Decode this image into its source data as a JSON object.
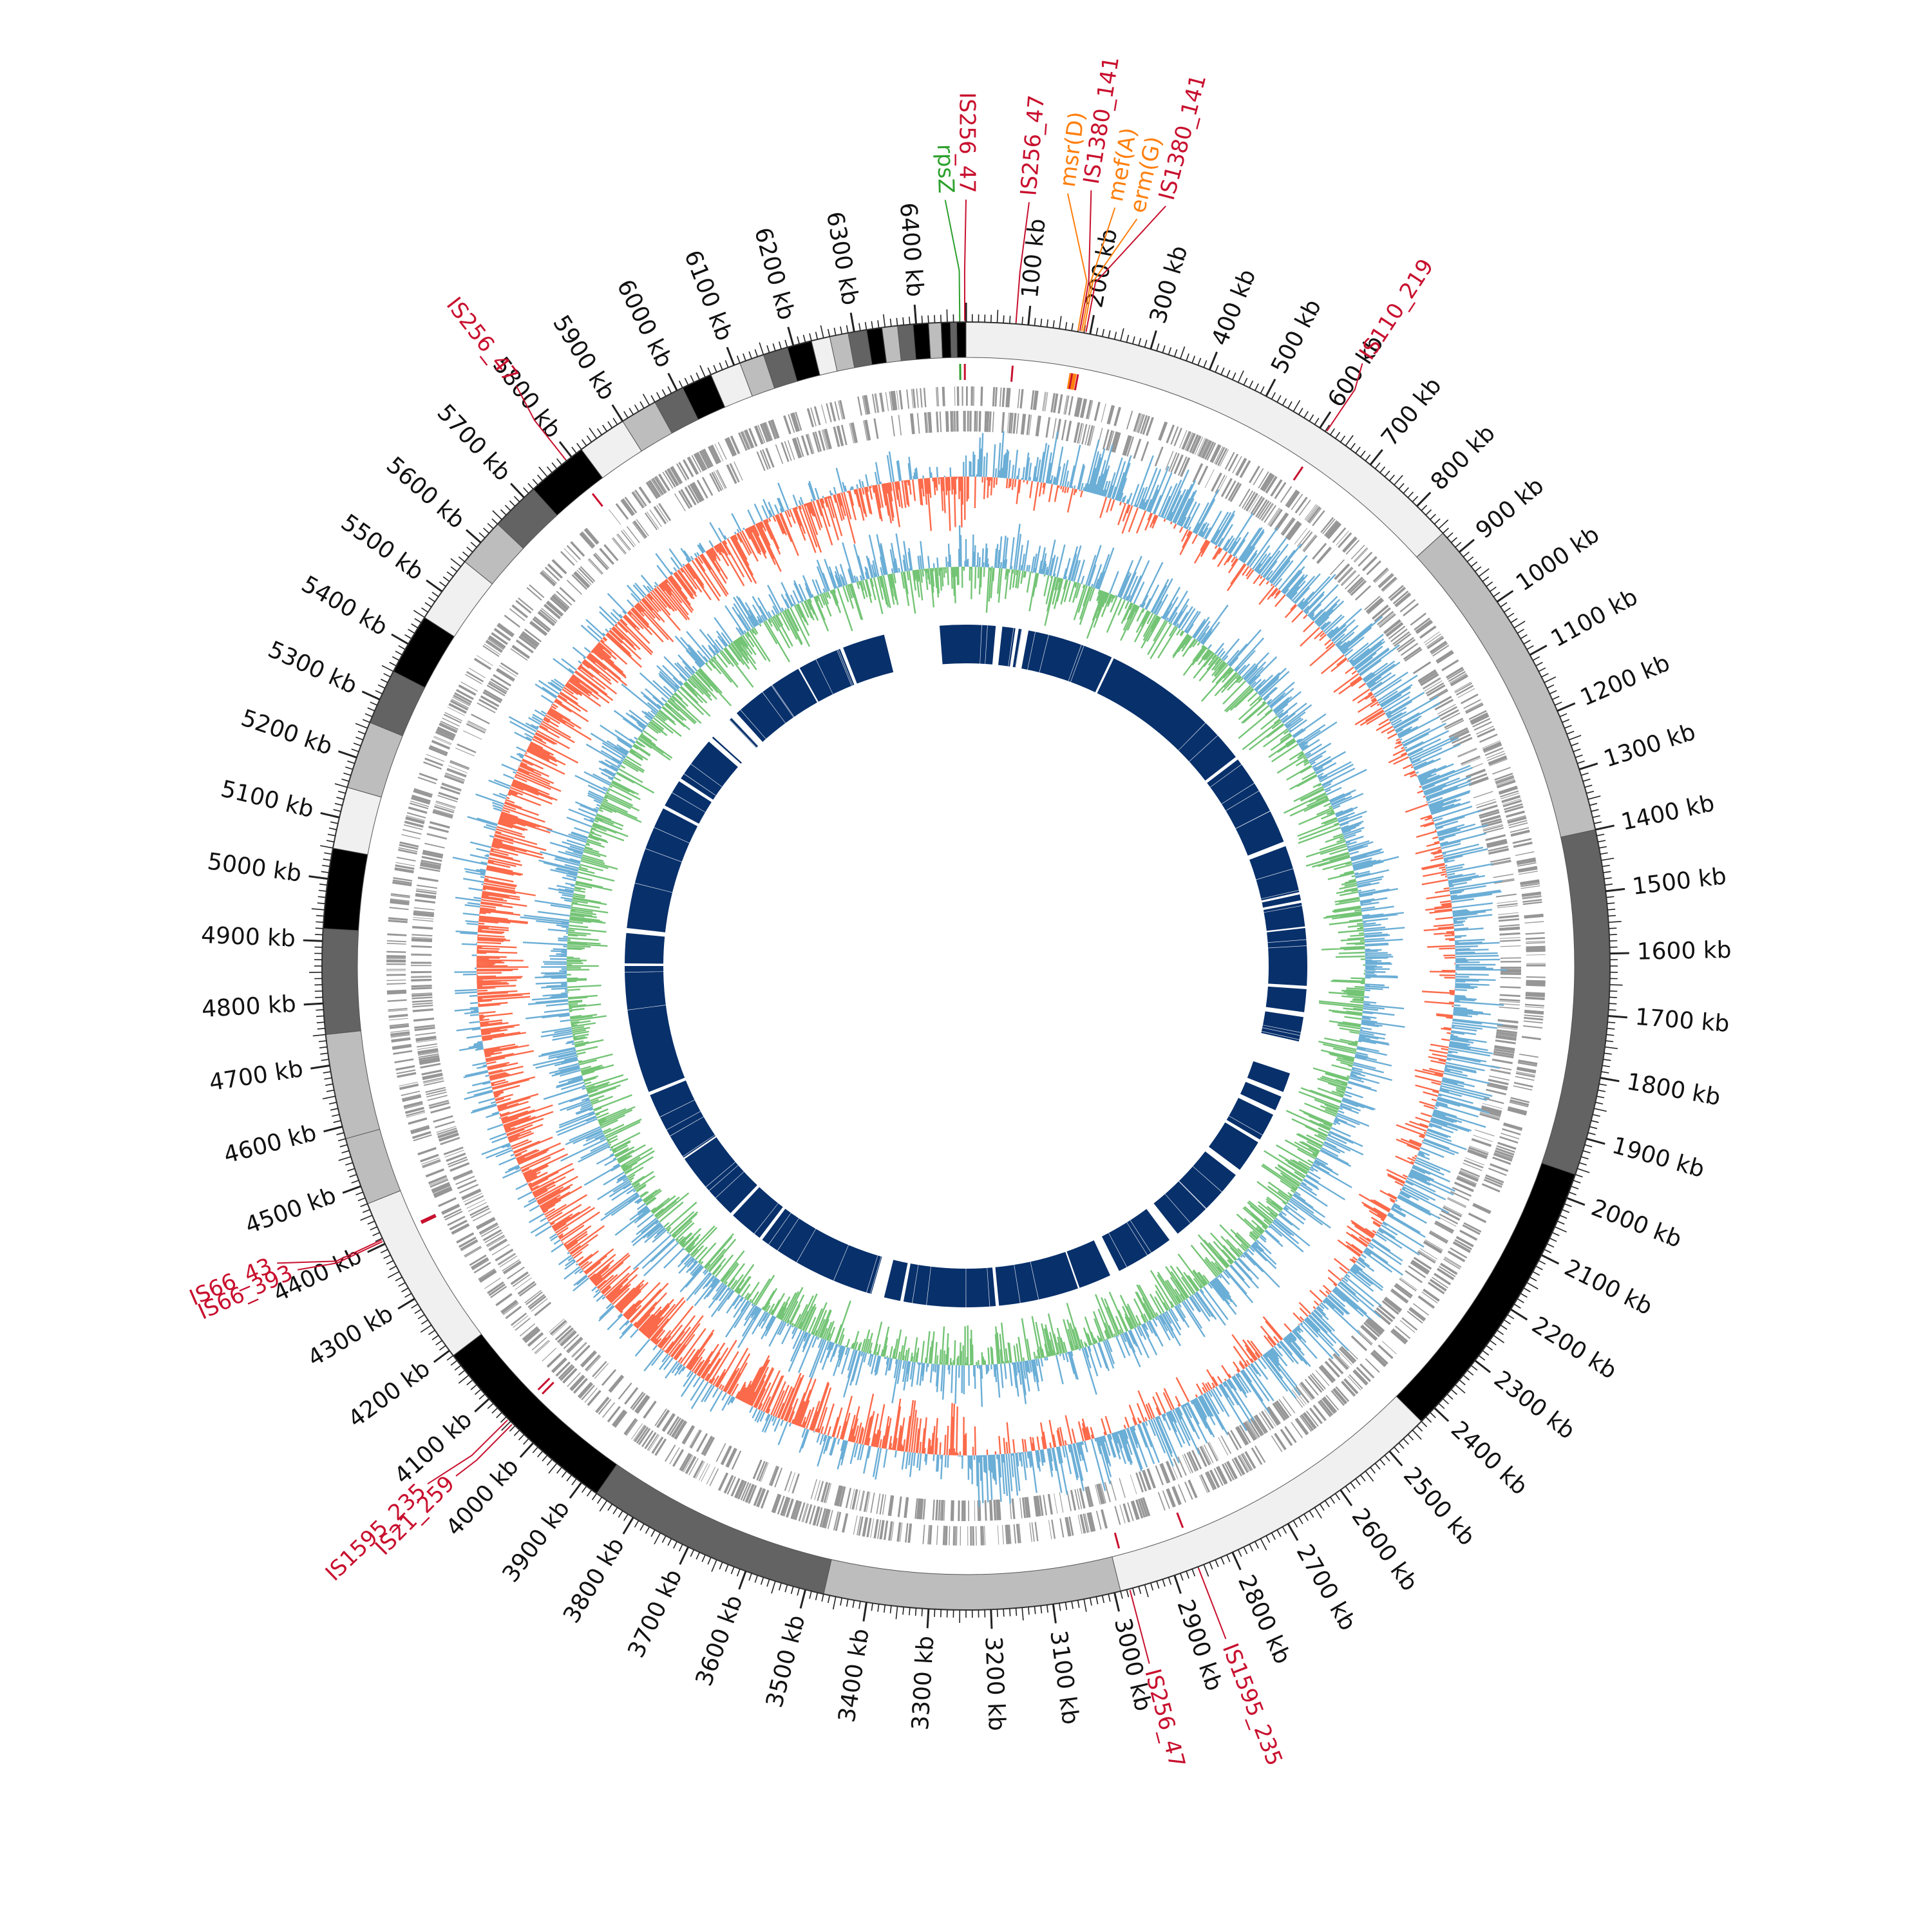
{
  "genome": {
    "length_kb": 6480,
    "tick_labels": [
      "100 kb",
      "200 kb",
      "300 kb",
      "400 kb",
      "500 kb",
      "600 kb",
      "700 kb",
      "800 kb",
      "900 kb",
      "1000 kb",
      "1100 kb",
      "1200 kb",
      "1300 kb",
      "1400 kb",
      "1500 kb",
      "1600 kb",
      "1700 kb",
      "1800 kb",
      "1900 kb",
      "2000 kb",
      "2100 kb",
      "2200 kb",
      "2300 kb",
      "2400 kb",
      "2500 kb",
      "2600 kb",
      "2700 kb",
      "2800 kb",
      "2900 kb",
      "3000 kb",
      "3100 kb",
      "3200 kb",
      "3300 kb",
      "3400 kb",
      "3500 kb",
      "3600 kb",
      "3700 kb",
      "3800 kb",
      "3900 kb",
      "4000 kb",
      "4100 kb",
      "4200 kb",
      "4300 kb",
      "4400 kb",
      "4500 kb",
      "4600 kb",
      "4700 kb",
      "4800 kb",
      "4900 kb",
      "5000 kb",
      "5100 kb",
      "5200 kb",
      "5300 kb",
      "5400 kb",
      "5500 kb",
      "5600 kb",
      "5700 kb",
      "5800 kb",
      "5900 kb",
      "6000 kb",
      "6100 kb",
      "6200 kb",
      "6300 kb",
      "6400 kb"
    ]
  },
  "contig_blocks": [
    {
      "start": 0,
      "end": 860,
      "color": "#f0f0f0"
    },
    {
      "start": 860,
      "end": 1400,
      "color": "#bdbdbd"
    },
    {
      "start": 1400,
      "end": 1960,
      "color": "#636363"
    },
    {
      "start": 1960,
      "end": 2430,
      "color": "#000000"
    },
    {
      "start": 2430,
      "end": 2990,
      "color": "#f0f0f0"
    },
    {
      "start": 2990,
      "end": 3470,
      "color": "#bdbdbd"
    },
    {
      "start": 3470,
      "end": 3870,
      "color": "#636363"
    },
    {
      "start": 3870,
      "end": 4190,
      "color": "#000000"
    },
    {
      "start": 4190,
      "end": 4470,
      "color": "#f0f0f0"
    },
    {
      "start": 4470,
      "end": 4580,
      "color": "#bdbdbd"
    },
    {
      "start": 4580,
      "end": 4750,
      "color": "#bdbdbd"
    },
    {
      "start": 4750,
      "end": 4920,
      "color": "#636363"
    },
    {
      "start": 4920,
      "end": 5050,
      "color": "#000000"
    },
    {
      "start": 5050,
      "end": 5150,
      "color": "#f0f0f0"
    },
    {
      "start": 5150,
      "end": 5260,
      "color": "#bdbdbd"
    },
    {
      "start": 5260,
      "end": 5350,
      "color": "#636363"
    },
    {
      "start": 5350,
      "end": 5450,
      "color": "#000000"
    },
    {
      "start": 5450,
      "end": 5560,
      "color": "#f0f0f0"
    },
    {
      "start": 5560,
      "end": 5640,
      "color": "#bdbdbd"
    },
    {
      "start": 5640,
      "end": 5720,
      "color": "#636363"
    },
    {
      "start": 5720,
      "end": 5820,
      "color": "#000000"
    },
    {
      "start": 5820,
      "end": 5900,
      "color": "#f0f0f0"
    },
    {
      "start": 5900,
      "end": 5960,
      "color": "#bdbdbd"
    },
    {
      "start": 5960,
      "end": 6010,
      "color": "#636363"
    },
    {
      "start": 6010,
      "end": 6060,
      "color": "#000000"
    },
    {
      "start": 6060,
      "end": 6110,
      "color": "#f0f0f0"
    },
    {
      "start": 6110,
      "end": 6150,
      "color": "#bdbdbd"
    },
    {
      "start": 6150,
      "end": 6190,
      "color": "#636363"
    },
    {
      "start": 6190,
      "end": 6230,
      "color": "#000000"
    },
    {
      "start": 6230,
      "end": 6260,
      "color": "#f0f0f0"
    },
    {
      "start": 6260,
      "end": 6290,
      "color": "#bdbdbd"
    },
    {
      "start": 6290,
      "end": 6320,
      "color": "#636363"
    },
    {
      "start": 6320,
      "end": 6345,
      "color": "#000000"
    },
    {
      "start": 6345,
      "end": 6370,
      "color": "#bdbdbd"
    },
    {
      "start": 6370,
      "end": 6395,
      "color": "#636363"
    },
    {
      "start": 6395,
      "end": 6420,
      "color": "#000000"
    },
    {
      "start": 6420,
      "end": 6440,
      "color": "#bdbdbd"
    },
    {
      "start": 6440,
      "end": 6455,
      "color": "#000000"
    },
    {
      "start": 6455,
      "end": 6465,
      "color": "#636363"
    },
    {
      "start": 6465,
      "end": 6480,
      "color": "#000000"
    }
  ],
  "annotations": [
    {
      "label": "rpsZ",
      "pos": 6470,
      "color": "#2ca02c"
    },
    {
      "label": "IS256_47",
      "pos": 6478,
      "color": "#c8102e"
    },
    {
      "label": "IS256_47",
      "pos": 80,
      "color": "#c8102e"
    },
    {
      "label": "msr(D)",
      "pos": 180,
      "color": "#ff7f0e"
    },
    {
      "label": "IS1380_141",
      "pos": 183,
      "color": "#c8102e"
    },
    {
      "label": "mef(A)",
      "pos": 186,
      "color": "#ff7f0e"
    },
    {
      "label": "erm(G)",
      "pos": 189,
      "color": "#ff7f0e"
    },
    {
      "label": "IS1380_141",
      "pos": 193,
      "color": "#c8102e"
    },
    {
      "label": "IS110_219",
      "pos": 612,
      "color": "#c8102e"
    },
    {
      "label": "IS256_47",
      "pos": 2975,
      "color": "#c8102e"
    },
    {
      "label": "IS1595_235",
      "pos": 2860,
      "color": "#c8102e"
    },
    {
      "label": "IS21_259",
      "pos": 4045,
      "color": "#c8102e"
    },
    {
      "label": "IS1595_235",
      "pos": 4055,
      "color": "#c8102e"
    },
    {
      "label": "IS66_393",
      "pos": 4405,
      "color": "#c8102e"
    },
    {
      "label": "IS66_43",
      "pos": 4408,
      "color": "#c8102e"
    },
    {
      "label": "IS256_47",
      "pos": 5790,
      "color": "#c8102e"
    }
  ],
  "tracks": {
    "cds_color": "#969696",
    "gc_skew_pos_color": "#6baed6",
    "gc_skew_neg_color": "#fb6a4a",
    "gc_content_pos_color": "#74c476",
    "gc_content_neg_color": "#6baed6",
    "homology_color": "#08306b"
  },
  "homology_gaps": [
    [
      90,
      110
    ],
    [
      150,
      160
    ],
    [
      170,
      190
    ],
    [
      455,
      462
    ],
    [
      940,
      950
    ],
    [
      1235,
      1250
    ],
    [
      1395,
      1402
    ],
    [
      1420,
      1428
    ],
    [
      1500,
      1505
    ],
    [
      1680,
      1690
    ],
    [
      1760,
      1775
    ],
    [
      1850,
      1880
    ],
    [
      1880,
      1950
    ],
    [
      2010,
      2025
    ],
    [
      2070,
      2085
    ],
    [
      2170,
      2180
    ],
    [
      2280,
      2300
    ],
    [
      2550,
      2580
    ],
    [
      2760,
      2790
    ],
    [
      2890,
      2895
    ],
    [
      3140,
      3150
    ],
    [
      3430,
      3440
    ],
    [
      3490,
      3530
    ],
    [
      3900,
      3910
    ],
    [
      4015,
      4025
    ],
    [
      4240,
      4245
    ],
    [
      4460,
      4470
    ],
    [
      4860,
      4868
    ],
    [
      4960,
      4975
    ],
    [
      5355,
      5365
    ],
    [
      5450,
      5460
    ],
    [
      5600,
      5615
    ],
    [
      5620,
      5690
    ],
    [
      5700,
      5720
    ],
    [
      5950,
      5955
    ],
    [
      6090,
      6100
    ],
    [
      6230,
      6400
    ]
  ]
}
